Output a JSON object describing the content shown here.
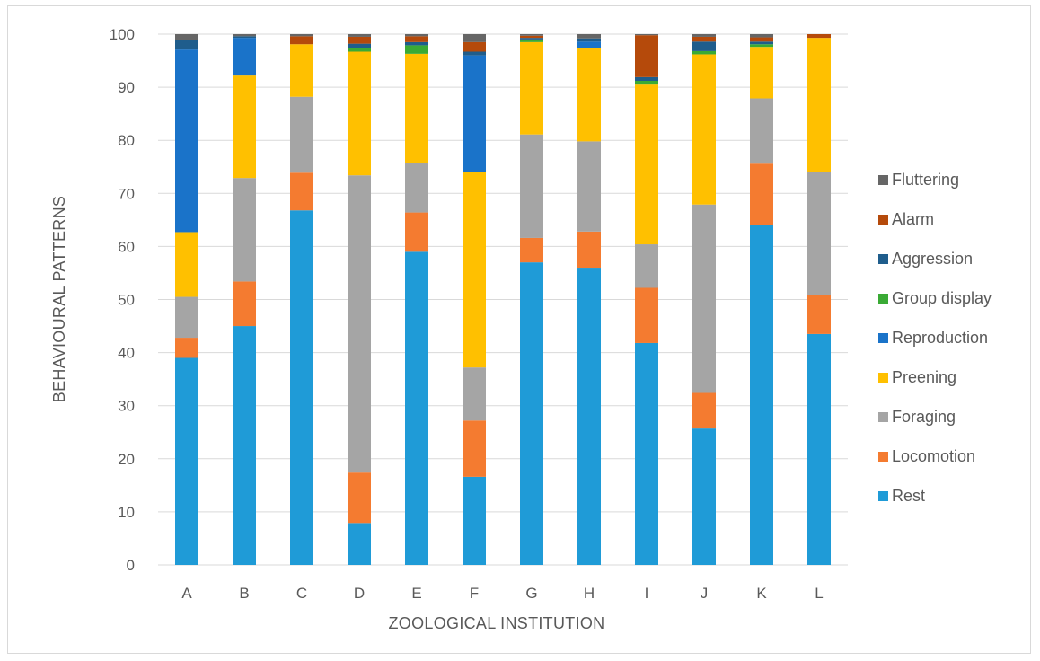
{
  "chart_data": {
    "type": "bar",
    "stacked": true,
    "title": "",
    "xlabel": "ZOOLOGICAL INSTITUTION",
    "ylabel": "BEHAVIOURAL PATTERNS",
    "ylim": [
      0,
      100
    ],
    "yticks": [
      0,
      10,
      20,
      30,
      40,
      50,
      60,
      70,
      80,
      90,
      100
    ],
    "grid": true,
    "legend_position": "right",
    "categories": [
      "A",
      "B",
      "C",
      "D",
      "E",
      "F",
      "G",
      "H",
      "I",
      "J",
      "K",
      "L"
    ],
    "series": [
      {
        "name": "Rest",
        "color": "#1f9bd7",
        "values": [
          39.0,
          45.0,
          66.8,
          7.9,
          59.0,
          16.6,
          57.0,
          56.0,
          41.8,
          25.7,
          64.0,
          43.5
        ]
      },
      {
        "name": "Locomotion",
        "color": "#f47b30",
        "values": [
          3.8,
          8.4,
          7.1,
          9.5,
          7.4,
          10.6,
          4.6,
          6.8,
          10.4,
          6.7,
          11.6,
          7.3
        ]
      },
      {
        "name": "Foraging",
        "color": "#a5a5a5",
        "values": [
          7.7,
          19.5,
          14.3,
          56.0,
          9.3,
          10.0,
          19.5,
          17.0,
          8.2,
          35.5,
          12.3,
          23.2
        ]
      },
      {
        "name": "Preening",
        "color": "#ffc000",
        "values": [
          12.2,
          19.3,
          9.9,
          23.3,
          20.6,
          36.9,
          17.4,
          17.6,
          30.1,
          28.3,
          9.7,
          25.3
        ]
      },
      {
        "name": "Reproduction",
        "color": "#1a73c9",
        "values": [
          34.4,
          7.1,
          0,
          0,
          0,
          21.9,
          0,
          1.2,
          0,
          0,
          0,
          0
        ]
      },
      {
        "name": "Group display",
        "color": "#3aaa35",
        "values": [
          0,
          0,
          0,
          0.7,
          1.6,
          0,
          0.5,
          0,
          0.7,
          0.6,
          0.5,
          0
        ]
      },
      {
        "name": "Aggression",
        "color": "#1f5d8c",
        "values": [
          1.8,
          0.3,
          0,
          0.8,
          0.6,
          0.7,
          0.3,
          0.6,
          0.7,
          1.8,
          0.5,
          0
        ]
      },
      {
        "name": "Alarm",
        "color": "#b54a0b",
        "values": [
          0,
          0,
          1.5,
          1.3,
          1.1,
          1.8,
          0.4,
          0,
          7.9,
          0.9,
          0.8,
          0.7
        ]
      },
      {
        "name": "Fluttering",
        "color": "#666666",
        "values": [
          1.1,
          0.4,
          0.4,
          0.5,
          0.4,
          1.5,
          0.3,
          0.8,
          0.2,
          0.5,
          0.6,
          0
        ]
      }
    ]
  }
}
